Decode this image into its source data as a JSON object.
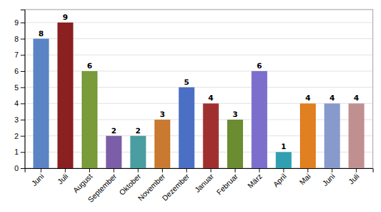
{
  "chart_data": {
    "type": "bar",
    "categories": [
      "Juni",
      "Juli",
      "August",
      "September",
      "Oktober",
      "November",
      "Dezember",
      "Januar",
      "Februar",
      "März",
      "April",
      "Mai",
      "Juni",
      "Juli"
    ],
    "values": [
      8,
      9,
      6,
      2,
      2,
      3,
      5,
      4,
      3,
      6,
      1,
      4,
      4,
      4
    ],
    "colors": [
      "#5B84C4",
      "#8B2020",
      "#7A9B3A",
      "#7B5EA7",
      "#4A9DA0",
      "#C97A30",
      "#4A6FC4",
      "#A03030",
      "#6B8C30",
      "#7B6ECC",
      "#30A0B0",
      "#E08020",
      "#8899CC",
      "#C09090"
    ],
    "ylim": [
      0,
      9.8
    ],
    "yticks": [
      0,
      1,
      2,
      3,
      4,
      5,
      6,
      7,
      8,
      9
    ],
    "grid": true,
    "data_labels": true
  }
}
